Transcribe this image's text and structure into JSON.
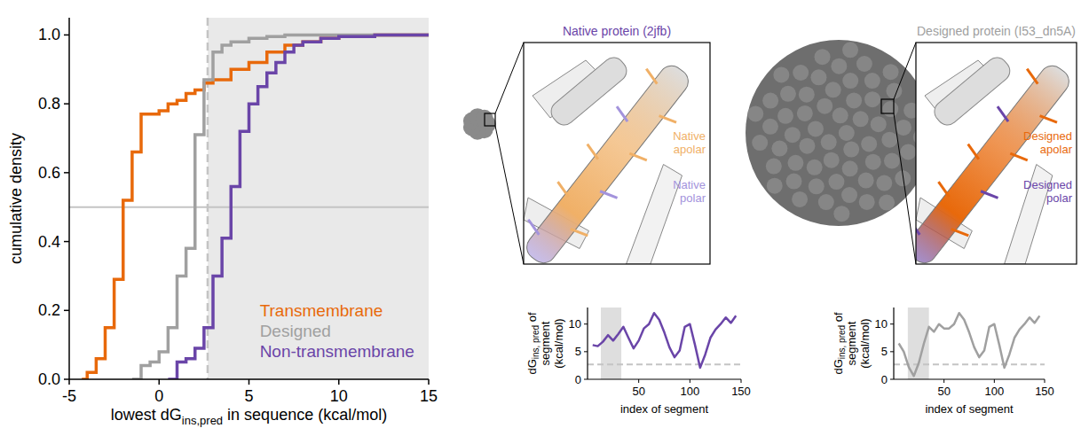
{
  "chart_data": [
    {
      "type": "step",
      "xlabel": [
        "lowest dG",
        "ins,pred",
        " in sequence (kcal/mol)"
      ],
      "ylabel": "cumulative density",
      "xlim": [
        -5,
        15
      ],
      "ylim": [
        0,
        1.05
      ],
      "xticks": [
        -5,
        0,
        5,
        10,
        15
      ],
      "yticks": [
        {
          "value": 0,
          "label": "0.0"
        },
        {
          "value": 0.2,
          "label": "0.2"
        },
        {
          "value": 0.4,
          "label": "0.4"
        },
        {
          "value": 0.6,
          "label": "0.6"
        },
        {
          "value": 0.8,
          "label": "0.8"
        },
        {
          "value": 1,
          "label": "1.0"
        }
      ],
      "threshold": 2.7,
      "reference_y": 0.5,
      "legend": "lower right",
      "series": [
        {
          "name": "Transmembrane",
          "color": "#e8690b",
          "x": [
            -4.3,
            -4,
            -3.5,
            -3,
            -2.5,
            -2,
            -1.5,
            -1,
            -0.5,
            0,
            0.5,
            1,
            1.5,
            2,
            2.5,
            3,
            4,
            5,
            6,
            7,
            8,
            9,
            10,
            12,
            15
          ],
          "values": [
            0,
            0.02,
            0.06,
            0.15,
            0.29,
            0.52,
            0.66,
            0.77,
            0.77,
            0.78,
            0.8,
            0.81,
            0.83,
            0.84,
            0.86,
            0.87,
            0.9,
            0.92,
            0.95,
            0.97,
            0.98,
            0.99,
            0.995,
            1,
            1
          ]
        },
        {
          "name": "Designed",
          "color": "#a0a0a0",
          "x": [
            -1.5,
            -1,
            -0.5,
            0,
            0.5,
            1,
            1.5,
            2,
            2.5,
            3,
            3.5,
            4,
            5,
            6,
            7,
            15
          ],
          "values": [
            0,
            0.04,
            0.05,
            0.08,
            0.15,
            0.3,
            0.38,
            0.71,
            0.87,
            0.95,
            0.97,
            0.98,
            0.99,
            0.995,
            1,
            1
          ]
        },
        {
          "name": "Non-transmembrane",
          "color": "#6a45a8",
          "x": [
            0.5,
            1,
            1.5,
            2,
            2.5,
            3,
            3.5,
            4,
            4.5,
            5,
            5.5,
            6,
            6.5,
            7,
            7.5,
            8,
            9,
            10,
            12,
            15
          ],
          "values": [
            0,
            0.05,
            0.06,
            0.09,
            0.15,
            0.3,
            0.41,
            0.56,
            0.72,
            0.8,
            0.85,
            0.89,
            0.92,
            0.95,
            0.97,
            0.98,
            0.99,
            0.995,
            1,
            1
          ]
        }
      ]
    },
    {
      "type": "line",
      "title": "Native protein (2jfb)",
      "annotations": [
        {
          "text": "Native apolar",
          "color": "#f0b067"
        },
        {
          "text": "Native polar",
          "color": "#a393dc"
        }
      ],
      "xlabel": "index of segment",
      "ylabel": [
        "dG",
        "ins, pred",
        " of segment (kcal/mol)"
      ],
      "xlim": [
        0,
        150
      ],
      "ylim": [
        0,
        13
      ],
      "xticks": [
        50,
        100,
        150
      ],
      "yticks": [
        0,
        5,
        10
      ],
      "threshold": 2.7,
      "shaded_range": [
        13,
        33
      ],
      "series": [
        {
          "color": "#6a45a8",
          "x": [
            5,
            10,
            15,
            20,
            25,
            30,
            35,
            40,
            45,
            50,
            55,
            60,
            65,
            70,
            75,
            80,
            85,
            90,
            95,
            100,
            105,
            110,
            115,
            120,
            125,
            130,
            135,
            140,
            145
          ],
          "values": [
            6.2,
            6.0,
            6.8,
            8.0,
            7.0,
            8.2,
            9.5,
            7.5,
            5.6,
            7.0,
            9.2,
            10.0,
            12.0,
            10.8,
            8.5,
            5.8,
            4.0,
            5.2,
            9.5,
            10.0,
            6.2,
            2.1,
            4.5,
            7.5,
            9.0,
            10.0,
            11.2,
            10.2,
            11.5
          ]
        }
      ]
    },
    {
      "type": "line",
      "title": "Designed protein (I53_dn5A)",
      "annotations": [
        {
          "text": "Designed apolar",
          "color": "#e8690b"
        },
        {
          "text": "Designed polar",
          "color": "#6a45a8"
        }
      ],
      "xlabel": "index of segment",
      "ylabel": [
        "dG",
        "ins, pred",
        " of segment (kcal/mol)"
      ],
      "xlim": [
        0,
        150
      ],
      "ylim": [
        0,
        13
      ],
      "xticks": [
        50,
        100,
        150
      ],
      "yticks": [
        0,
        5,
        10
      ],
      "threshold": 2.7,
      "shaded_range": [
        14,
        35
      ],
      "series": [
        {
          "color": "#a0a0a0",
          "x": [
            5,
            10,
            15,
            20,
            25,
            30,
            35,
            40,
            45,
            50,
            55,
            60,
            65,
            70,
            75,
            80,
            85,
            90,
            95,
            100,
            105,
            110,
            115,
            120,
            125,
            130,
            135,
            140,
            145
          ],
          "values": [
            6.5,
            5.0,
            2.2,
            0.6,
            3.0,
            6.5,
            9.5,
            8.6,
            10.0,
            9.2,
            9.2,
            10.0,
            12.0,
            10.8,
            8.5,
            5.8,
            4.0,
            5.2,
            9.5,
            10.0,
            6.2,
            2.1,
            4.5,
            7.5,
            9.0,
            10.0,
            11.2,
            10.2,
            11.5
          ]
        }
      ]
    }
  ]
}
